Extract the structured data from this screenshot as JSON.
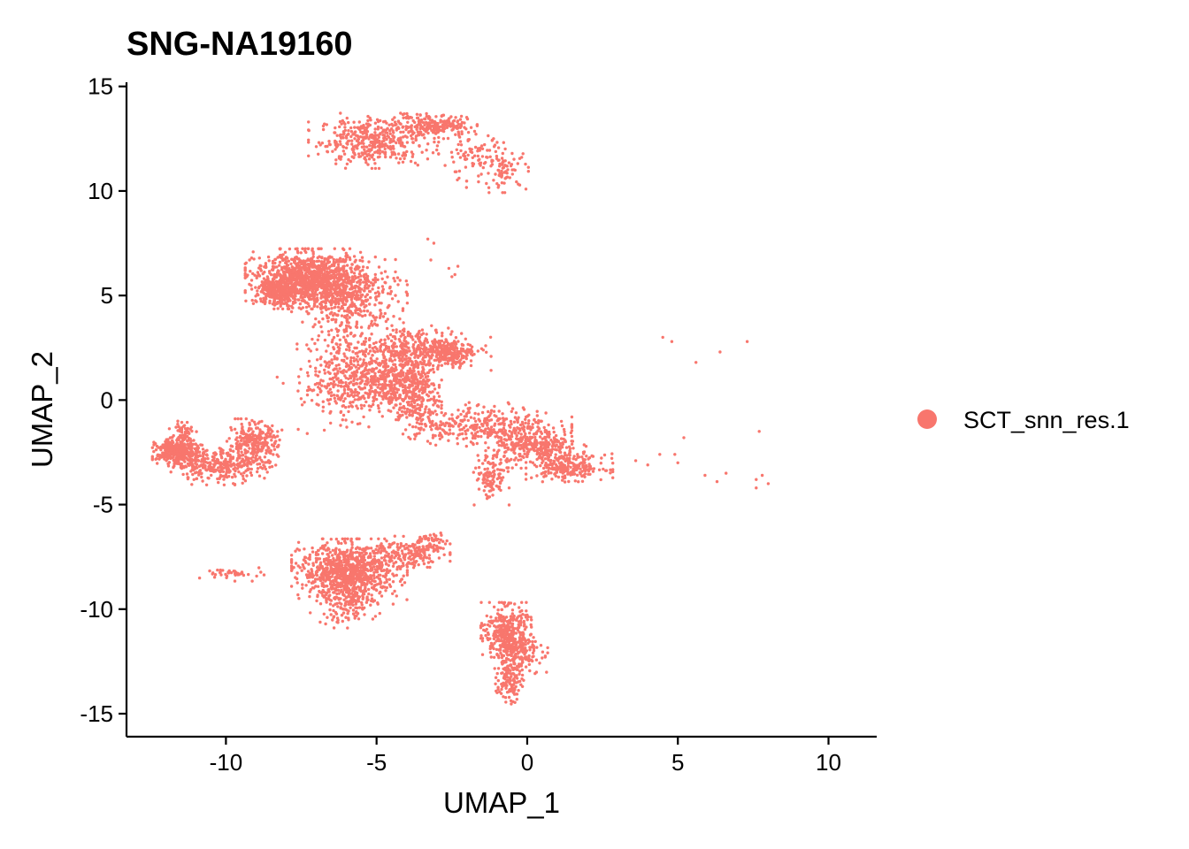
{
  "chart_data": {
    "type": "scatter",
    "title": "SNG-NA19160",
    "xlabel": "UMAP_1",
    "ylabel": "UMAP_2",
    "xlim": [
      -13.3,
      11.6
    ],
    "ylim": [
      -16.1,
      15.2
    ],
    "x_ticks": [
      -10,
      -5,
      0,
      5,
      10
    ],
    "x_tick_labels": [
      "-10",
      "-5",
      "0",
      "5",
      "10"
    ],
    "y_ticks": [
      -15,
      -10,
      -5,
      0,
      5,
      10,
      15
    ],
    "y_tick_labels": [
      "-15",
      "-10",
      "-5",
      "0",
      "5",
      "10",
      "15"
    ],
    "grid": false,
    "legend_position": "right",
    "color": "#F8766D",
    "series": [
      {
        "name": "SCT_snn_res.1",
        "clusters": [
          {
            "cx": -5.1,
            "cy": 12.4,
            "sx": 0.9,
            "sy": 0.55,
            "n": 420
          },
          {
            "cx": -3.1,
            "cy": 13.1,
            "sx": 0.6,
            "sy": 0.25,
            "n": 220
          },
          {
            "cx": -1.8,
            "cy": 11.6,
            "sx": 0.5,
            "sy": 0.6,
            "n": 90
          },
          {
            "cx": -0.7,
            "cy": 11.0,
            "sx": 0.35,
            "sy": 0.45,
            "n": 70
          },
          {
            "cx": -7.2,
            "cy": 5.8,
            "sx": 0.9,
            "sy": 0.6,
            "n": 1100
          },
          {
            "cx": -8.3,
            "cy": 5.2,
            "sx": 0.3,
            "sy": 0.35,
            "n": 250
          },
          {
            "cx": -5.9,
            "cy": 4.8,
            "sx": 0.8,
            "sy": 0.8,
            "n": 400
          },
          {
            "cx": -6.2,
            "cy": 1.2,
            "sx": 0.6,
            "sy": 1.1,
            "n": 300
          },
          {
            "cx": -4.6,
            "cy": 0.9,
            "sx": 0.7,
            "sy": 0.7,
            "n": 450
          },
          {
            "cx": -3.6,
            "cy": 2.5,
            "sx": 1.0,
            "sy": 0.5,
            "n": 350
          },
          {
            "cx": -2.6,
            "cy": 2.2,
            "sx": 0.35,
            "sy": 0.3,
            "n": 150
          },
          {
            "cx": -3.8,
            "cy": 0.3,
            "sx": 0.4,
            "sy": 0.9,
            "n": 250
          },
          {
            "cx": -1.4,
            "cy": -1.2,
            "sx": 1.2,
            "sy": 0.45,
            "n": 350
          },
          {
            "cx": 0.3,
            "cy": -2.3,
            "sx": 0.7,
            "sy": 0.4,
            "n": 320
          },
          {
            "cx": 1.4,
            "cy": -3.2,
            "sx": 0.6,
            "sy": 0.3,
            "n": 220
          },
          {
            "cx": -1.2,
            "cy": -3.7,
            "sx": 0.25,
            "sy": 0.55,
            "n": 110
          },
          {
            "cx": -11.6,
            "cy": -2.5,
            "sx": 0.35,
            "sy": 0.3,
            "n": 380
          },
          {
            "cx": -10.2,
            "cy": -3.1,
            "sx": 0.7,
            "sy": 0.4,
            "n": 280
          },
          {
            "cx": -9.1,
            "cy": -2.1,
            "sx": 0.4,
            "sy": 0.5,
            "n": 300
          },
          {
            "cx": -11.4,
            "cy": -1.6,
            "sx": 0.2,
            "sy": 0.3,
            "n": 60
          },
          {
            "cx": -5.9,
            "cy": -8.2,
            "sx": 0.8,
            "sy": 0.65,
            "n": 900
          },
          {
            "cx": -6.0,
            "cy": -9.7,
            "sx": 0.5,
            "sy": 0.5,
            "n": 150
          },
          {
            "cx": -4.0,
            "cy": -7.3,
            "sx": 0.6,
            "sy": 0.35,
            "n": 160
          },
          {
            "cx": -3.2,
            "cy": -6.8,
            "sx": 0.25,
            "sy": 0.25,
            "n": 50
          },
          {
            "cx": -9.5,
            "cy": -8.3,
            "sx": 0.6,
            "sy": 0.15,
            "n": 40
          },
          {
            "cx": -0.7,
            "cy": -11.0,
            "sx": 0.35,
            "sy": 0.55,
            "n": 300
          },
          {
            "cx": -0.4,
            "cy": -12.0,
            "sx": 0.45,
            "sy": 0.45,
            "n": 200
          },
          {
            "cx": -0.6,
            "cy": -13.4,
            "sx": 0.2,
            "sy": 0.5,
            "n": 120
          }
        ],
        "sparse_points": [
          [
            -3.3,
            7.7
          ],
          [
            -3.1,
            7.5
          ],
          [
            -3.2,
            6.7
          ],
          [
            -2.6,
            6.3
          ],
          [
            -2.4,
            6.0
          ],
          [
            -2.3,
            6.4
          ],
          [
            -2.5,
            5.9
          ],
          [
            4.5,
            3.0
          ],
          [
            4.8,
            2.8
          ],
          [
            5.6,
            1.8
          ],
          [
            6.4,
            2.3
          ],
          [
            7.3,
            2.8
          ],
          [
            5.9,
            -3.6
          ],
          [
            6.3,
            -3.9
          ],
          [
            6.6,
            -3.5
          ],
          [
            7.6,
            -3.8
          ],
          [
            7.8,
            -3.6
          ],
          [
            8.0,
            -4.0
          ],
          [
            7.6,
            -4.2
          ],
          [
            3.6,
            -2.9
          ],
          [
            4.0,
            -3.1
          ],
          [
            4.4,
            -2.6
          ],
          [
            5.0,
            -3.0
          ],
          [
            4.9,
            -2.6
          ],
          [
            7.7,
            -1.5
          ],
          [
            5.2,
            -1.8
          ],
          [
            -8.3,
            1.1
          ],
          [
            -8.1,
            0.8
          ],
          [
            -7.2,
            0.5
          ],
          [
            -6.6,
            0.4
          ],
          [
            -7.6,
            -1.4
          ],
          [
            -7.3,
            -1.6
          ]
        ]
      }
    ]
  }
}
